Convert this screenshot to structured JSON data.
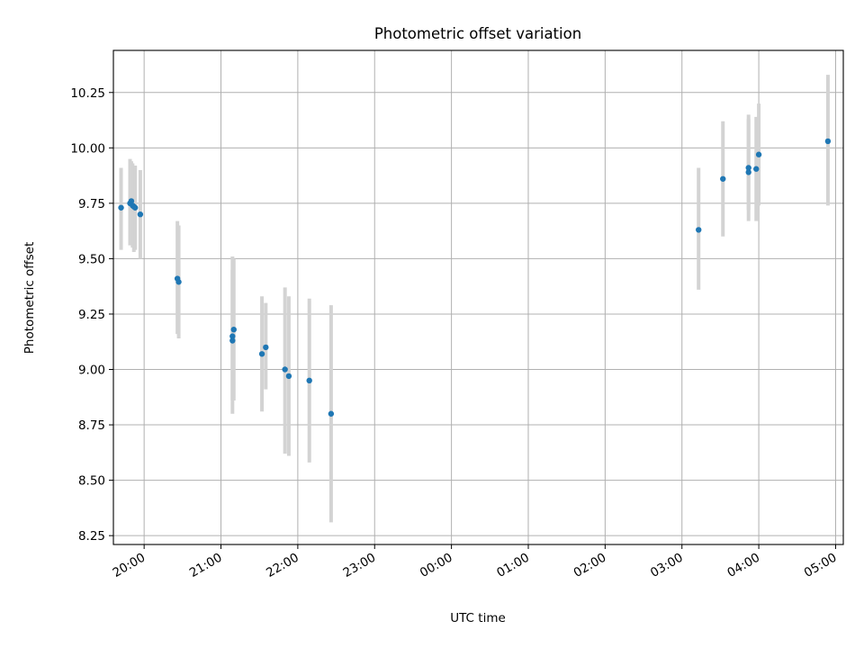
{
  "chart_data": {
    "type": "scatter",
    "title": "Photometric offset variation",
    "xlabel": "UTC time",
    "ylabel": "Photometric offset",
    "x_axis_kind": "time",
    "xlim": [
      "19:36",
      "05:06"
    ],
    "ylim": [
      8.21,
      10.44
    ],
    "grid": true,
    "x_ticks": [
      "20:00",
      "21:00",
      "22:00",
      "23:00",
      "00:00",
      "01:00",
      "02:00",
      "03:00",
      "04:00",
      "05:00"
    ],
    "y_ticks": [
      "8.25",
      "8.50",
      "8.75",
      "9.00",
      "9.25",
      "9.50",
      "9.75",
      "10.00",
      "10.25"
    ],
    "point_color": "#1f77b4",
    "errorbar_color": "#d3d3d3",
    "points": [
      {
        "x": "19:42",
        "y": 9.73,
        "err_low": 9.54,
        "err_high": 9.91
      },
      {
        "x": "19:49",
        "y": 9.75,
        "err_low": 9.56,
        "err_high": 9.95
      },
      {
        "x": "19:50",
        "y": 9.76,
        "err_low": 9.57,
        "err_high": 9.94
      },
      {
        "x": "19:51",
        "y": 9.74,
        "err_low": 9.55,
        "err_high": 9.93
      },
      {
        "x": "19:52",
        "y": 9.735,
        "err_low": 9.53,
        "err_high": 9.92
      },
      {
        "x": "19:53",
        "y": 9.73,
        "err_low": 9.54,
        "err_high": 9.92
      },
      {
        "x": "19:57",
        "y": 9.7,
        "err_low": 9.5,
        "err_high": 9.9
      },
      {
        "x": "20:26",
        "y": 9.41,
        "err_low": 9.16,
        "err_high": 9.67
      },
      {
        "x": "20:27",
        "y": 9.395,
        "err_low": 9.14,
        "err_high": 9.65
      },
      {
        "x": "21:09",
        "y": 9.15,
        "err_low": 8.86,
        "err_high": 9.51
      },
      {
        "x": "21:09",
        "y": 9.13,
        "err_low": 8.8,
        "err_high": 9.45
      },
      {
        "x": "21:10",
        "y": 9.18,
        "err_low": 8.86,
        "err_high": 9.5
      },
      {
        "x": "21:32",
        "y": 9.07,
        "err_low": 8.81,
        "err_high": 9.33
      },
      {
        "x": "21:35",
        "y": 9.1,
        "err_low": 8.91,
        "err_high": 9.3
      },
      {
        "x": "21:50",
        "y": 9.0,
        "err_low": 8.62,
        "err_high": 9.37
      },
      {
        "x": "21:53",
        "y": 8.97,
        "err_low": 8.61,
        "err_high": 9.33
      },
      {
        "x": "22:09",
        "y": 8.95,
        "err_low": 8.58,
        "err_high": 9.32
      },
      {
        "x": "22:26",
        "y": 8.8,
        "err_low": 8.31,
        "err_high": 9.29
      },
      {
        "x": "03:13",
        "y": 9.63,
        "err_low": 9.36,
        "err_high": 9.91
      },
      {
        "x": "03:32",
        "y": 9.86,
        "err_low": 9.6,
        "err_high": 10.12
      },
      {
        "x": "03:52",
        "y": 9.89,
        "err_low": 9.67,
        "err_high": 10.15
      },
      {
        "x": "03:52",
        "y": 9.91,
        "err_low": 9.72,
        "err_high": 10.13
      },
      {
        "x": "03:58",
        "y": 9.905,
        "err_low": 9.67,
        "err_high": 10.14
      },
      {
        "x": "04:00",
        "y": 9.97,
        "err_low": 9.74,
        "err_high": 10.2
      },
      {
        "x": "04:54",
        "y": 10.03,
        "err_low": 9.74,
        "err_high": 10.33
      }
    ]
  }
}
